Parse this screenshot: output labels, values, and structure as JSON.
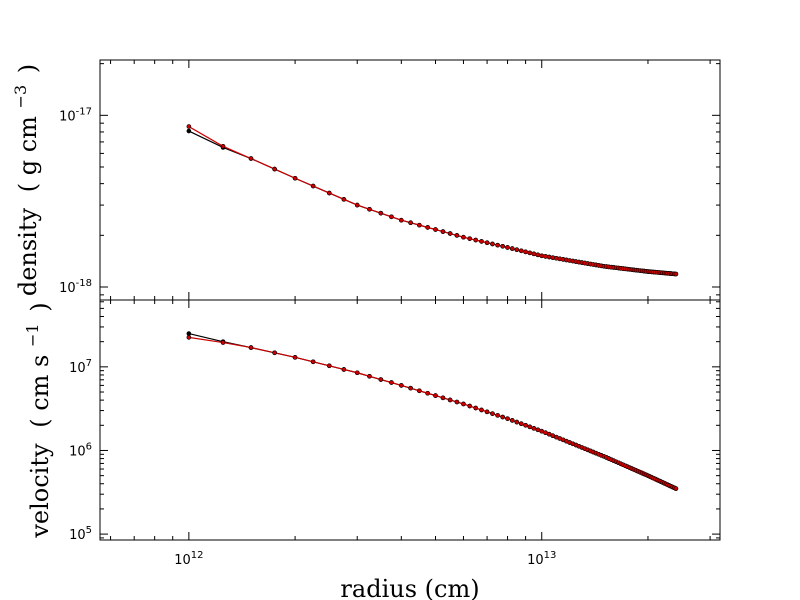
{
  "chart_data": [
    {
      "type": "line",
      "panel": "top",
      "ylabel": "density (g cm$^{-3}$)",
      "ylabel_parts": {
        "main": "density",
        "open": "(",
        "unit": "g cm",
        "sup": "−3",
        "close": ")"
      },
      "x_scale": "log",
      "y_scale": "log",
      "xlim": [
        560000000000.0,
        32000000000000.0
      ],
      "ylim": [
        8.4e-19,
        2.1e-17
      ],
      "yticks": [
        {
          "value": 1e-17,
          "base": "10",
          "exp": "-17"
        },
        {
          "value": 1e-18,
          "base": "10",
          "exp": "-18"
        }
      ],
      "series": [
        {
          "color": "#000000",
          "x": [
            1000000000000.0,
            1250000000000.0,
            1500000000000.0,
            2000000000000.0,
            3000000000000.0,
            4000000000000.0,
            6000000000000.0,
            8000000000000.0,
            10000000000000.0,
            15000000000000.0,
            20000000000000.0,
            24000000000000.0
          ],
          "y": [
            8.1e-18,
            6.5e-18,
            5.6e-18,
            4.3e-18,
            3e-18,
            2.45e-18,
            1.95e-18,
            1.7e-18,
            1.52e-18,
            1.32e-18,
            1.23e-18,
            1.19e-18
          ]
        },
        {
          "color": "#cc0000",
          "x": [
            1000000000000.0,
            1250000000000.0,
            1500000000000.0,
            2000000000000.0,
            3000000000000.0,
            4000000000000.0,
            6000000000000.0,
            8000000000000.0,
            10000000000000.0,
            15000000000000.0,
            20000000000000.0,
            24000000000000.0
          ],
          "y": [
            8.6e-18,
            6.6e-18,
            5.6e-18,
            4.3e-18,
            3e-18,
            2.45e-18,
            1.95e-18,
            1.7e-18,
            1.52e-18,
            1.32e-18,
            1.23e-18,
            1.19e-18
          ]
        }
      ]
    },
    {
      "type": "line",
      "panel": "bottom",
      "xlabel": "radius (cm)",
      "ylabel": "velocity (cm s$^{-1}$)",
      "ylabel_parts": {
        "main": "velocity",
        "open": "(",
        "unit": "cm s",
        "sup": "−1",
        "close": ")"
      },
      "x_scale": "log",
      "y_scale": "log",
      "xlim": [
        560000000000.0,
        32000000000000.0
      ],
      "ylim": [
        85000.0,
        63000000.0
      ],
      "xticks": [
        {
          "value": 1000000000000.0,
          "base": "10",
          "exp": "12"
        },
        {
          "value": 10000000000000.0,
          "base": "10",
          "exp": "13"
        }
      ],
      "yticks": [
        {
          "value": 10000000.0,
          "base": "10",
          "exp": "7"
        },
        {
          "value": 1000000.0,
          "base": "10",
          "exp": "6"
        },
        {
          "value": 100000.0,
          "base": "10",
          "exp": "5"
        }
      ],
      "series": [
        {
          "color": "#000000",
          "x": [
            1000000000000.0,
            1250000000000.0,
            1500000000000.0,
            2000000000000.0,
            3000000000000.0,
            4000000000000.0,
            6000000000000.0,
            8000000000000.0,
            10000000000000.0,
            15000000000000.0,
            20000000000000.0,
            24000000000000.0
          ],
          "y": [
            25000000.0,
            20000000.0,
            17000000.0,
            13000000.0,
            8500000.0,
            6000000.0,
            3600000.0,
            2400000.0,
            1700000.0,
            850000.0,
            500000.0,
            350000.0
          ]
        },
        {
          "color": "#cc0000",
          "x": [
            1000000000000.0,
            1250000000000.0,
            1500000000000.0,
            2000000000000.0,
            3000000000000.0,
            4000000000000.0,
            6000000000000.0,
            8000000000000.0,
            10000000000000.0,
            15000000000000.0,
            20000000000000.0,
            24000000000000.0
          ],
          "y": [
            22500000.0,
            19500000.0,
            17000000.0,
            13000000.0,
            8500000.0,
            6000000.0,
            3600000.0,
            2400000.0,
            1700000.0,
            850000.0,
            500000.0,
            350000.0
          ]
        }
      ]
    }
  ]
}
